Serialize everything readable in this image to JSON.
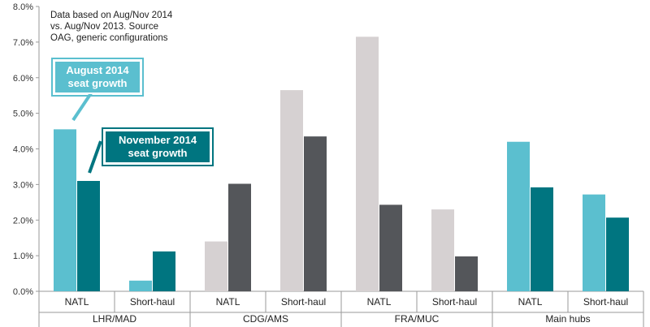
{
  "chart_data": {
    "type": "bar",
    "note_lines": [
      "Data based on Aug/Nov 2014",
      "vs. Aug/Nov 2013. Source",
      "OAG, generic configurations"
    ],
    "y_ticks": [
      "0.0%",
      "1.0%",
      "2.0%",
      "3.0%",
      "4.0%",
      "5.0%",
      "6.0%",
      "7.0%",
      "8.0%"
    ],
    "ylim": [
      0,
      8
    ],
    "series_names": [
      "August 2014 seat growth",
      "November 2014 seat growth"
    ],
    "groups": [
      {
        "name": "LHR/MAD",
        "light": "#5bbfcf",
        "dark": "#007580",
        "categories": [
          {
            "label": "NATL",
            "values": [
              4.55,
              3.1
            ]
          },
          {
            "label": "Short-haul",
            "values": [
              0.3,
              1.12
            ]
          }
        ]
      },
      {
        "name": "CDG/AMS",
        "light": "#d6d1d2",
        "dark": "#54565a",
        "categories": [
          {
            "label": "NATL",
            "values": [
              1.4,
              3.02
            ]
          },
          {
            "label": "Short-haul",
            "values": [
              5.65,
              4.35
            ]
          }
        ]
      },
      {
        "name": "FRA/MUC",
        "light": "#d6d1d2",
        "dark": "#54565a",
        "categories": [
          {
            "label": "NATL",
            "values": [
              7.15,
              2.43
            ]
          },
          {
            "label": "Short-haul",
            "values": [
              2.3,
              0.98
            ]
          }
        ]
      },
      {
        "name": "Main hubs",
        "light": "#5bbfcf",
        "dark": "#007580",
        "categories": [
          {
            "label": "NATL",
            "values": [
              4.2,
              2.92
            ]
          },
          {
            "label": "Short-haul",
            "values": [
              2.72,
              2.07
            ]
          }
        ]
      }
    ],
    "callouts": [
      {
        "lines": [
          "August 2014",
          "seat growth"
        ],
        "color": "#5bbfcf"
      },
      {
        "lines": [
          "November 2014",
          "seat growth"
        ],
        "color": "#007580"
      }
    ]
  }
}
